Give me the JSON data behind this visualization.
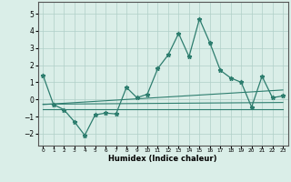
{
  "xlabel": "Humidex (Indice chaleur)",
  "bg_color": "#daeee8",
  "grid_color": "#b0cfc8",
  "line_color": "#2d7d6e",
  "xlim": [
    -0.5,
    23.5
  ],
  "ylim": [
    -2.7,
    5.7
  ],
  "yticks": [
    -2,
    -1,
    0,
    1,
    2,
    3,
    4,
    5
  ],
  "xticks": [
    0,
    1,
    2,
    3,
    4,
    5,
    6,
    7,
    8,
    9,
    10,
    11,
    12,
    13,
    14,
    15,
    16,
    17,
    18,
    19,
    20,
    21,
    22,
    23
  ],
  "main_x": [
    0,
    1,
    2,
    3,
    4,
    5,
    6,
    7,
    8,
    9,
    10,
    11,
    12,
    13,
    14,
    15,
    16,
    17,
    18,
    19,
    20,
    21,
    22,
    23
  ],
  "main_y": [
    1.4,
    -0.3,
    -0.6,
    -1.3,
    -2.1,
    -0.9,
    -0.8,
    -0.85,
    0.7,
    0.1,
    0.3,
    1.8,
    2.6,
    3.85,
    2.5,
    4.7,
    3.3,
    1.7,
    1.25,
    1.0,
    -0.45,
    1.35,
    0.1,
    0.2
  ],
  "line1_x": [
    0,
    23
  ],
  "line1_y": [
    -0.3,
    0.55
  ],
  "line2_x": [
    0,
    23
  ],
  "line2_y": [
    -0.28,
    -0.18
  ],
  "line3_x": [
    0,
    23
  ],
  "line3_y": [
    -0.55,
    -0.55
  ]
}
